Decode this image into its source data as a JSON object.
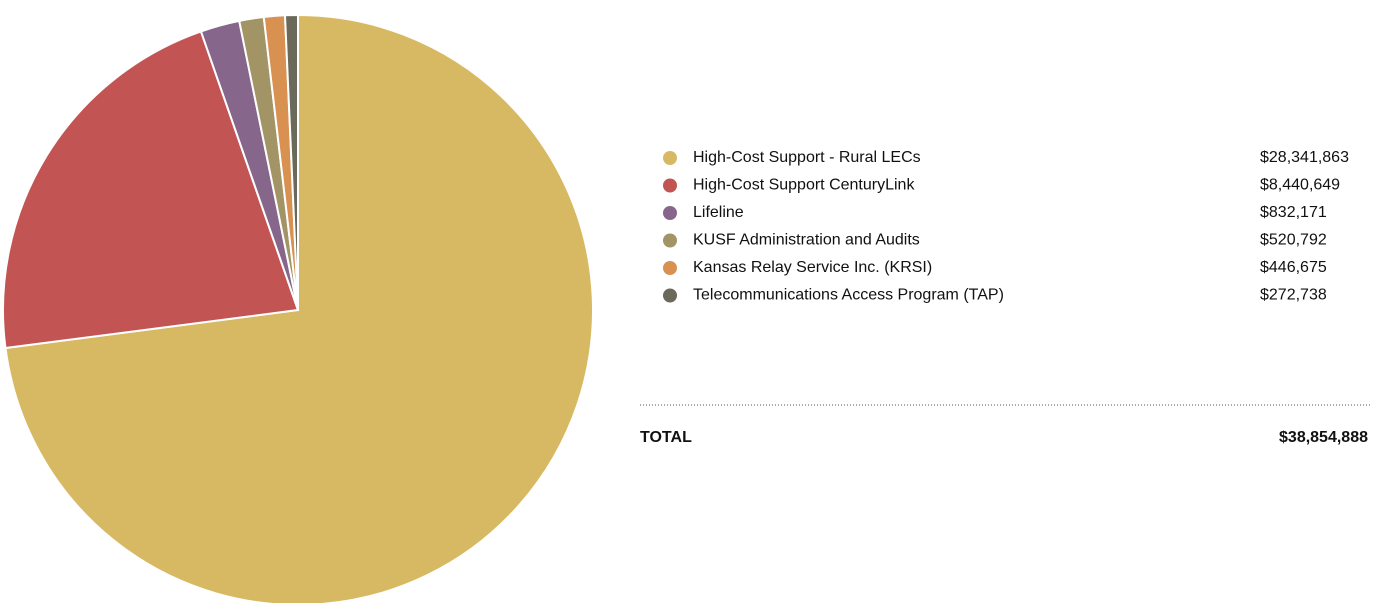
{
  "chart_data": {
    "type": "pie",
    "categories": [
      "High-Cost Support - Rural LECs",
      "High-Cost Support CenturyLink",
      "Lifeline",
      "KUSF Administration and Audits",
      "Kansas Relay Service Inc. (KRSI)",
      "Telecommunications Access Program (TAP)"
    ],
    "values": [
      28341863,
      8440649,
      832171,
      520792,
      446675,
      272738
    ],
    "value_labels": [
      "$28,341,863",
      "$8,440,649",
      "$832,171",
      "$520,792",
      "$446,675",
      "$272,738"
    ],
    "colors": [
      "#d8b963",
      "#c25553",
      "#87668c",
      "#a39466",
      "#d89150",
      "#6b6a5a"
    ],
    "total": {
      "label": "TOTAL",
      "value": 38854888,
      "value_label": "$38,854,888"
    }
  }
}
